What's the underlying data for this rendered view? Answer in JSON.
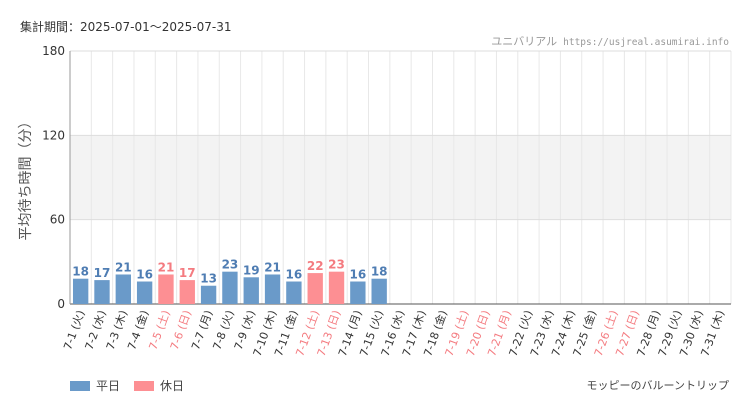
{
  "period_label": "集計期間：2025-07-01～2025-07-31",
  "source": {
    "park": "ユニバリアル",
    "site": "https://usjreal.asumirai.info"
  },
  "attraction": "モッピーのバルーントリップ",
  "colors": {
    "weekday": "#6a9ac9",
    "holiday": "#fd8f93",
    "holiday_label": "#f47b80",
    "weekday_label": "#4f7db3"
  },
  "legend": [
    {
      "label": "平日",
      "color": "#6a9ac9"
    },
    {
      "label": "休日",
      "color": "#fd8f93"
    }
  ],
  "chart_data": {
    "type": "bar",
    "ylabel": "平均待ち時間（分）",
    "ylim": [
      0,
      180
    ],
    "yticks": [
      0,
      60,
      120,
      180
    ],
    "categories": [
      "7-1 (火)",
      "7-2 (水)",
      "7-3 (木)",
      "7-4 (金)",
      "7-5 (土)",
      "7-6 (日)",
      "7-7 (月)",
      "7-8 (火)",
      "7-9 (水)",
      "7-10 (木)",
      "7-11 (金)",
      "7-12 (土)",
      "7-13 (日)",
      "7-14 (月)",
      "7-15 (火)",
      "7-16 (水)",
      "7-17 (木)",
      "7-18 (金)",
      "7-19 (土)",
      "7-20 (日)",
      "7-21 (月)",
      "7-22 (火)",
      "7-23 (水)",
      "7-24 (木)",
      "7-25 (金)",
      "7-26 (土)",
      "7-27 (日)",
      "7-28 (月)",
      "7-29 (火)",
      "7-30 (水)",
      "7-31 (木)"
    ],
    "values": [
      18,
      17,
      21,
      16,
      21,
      17,
      13,
      23,
      19,
      21,
      16,
      22,
      23,
      16,
      18,
      null,
      null,
      null,
      null,
      null,
      null,
      null,
      null,
      null,
      null,
      null,
      null,
      null,
      null,
      null,
      null
    ],
    "day_type": [
      "平日",
      "平日",
      "平日",
      "平日",
      "休日",
      "休日",
      "平日",
      "平日",
      "平日",
      "平日",
      "平日",
      "休日",
      "休日",
      "平日",
      "平日",
      "平日",
      "平日",
      "平日",
      "休日",
      "休日",
      "休日",
      "平日",
      "平日",
      "平日",
      "平日",
      "休日",
      "休日",
      "平日",
      "平日",
      "平日",
      "平日"
    ],
    "shaded_band": [
      60,
      120
    ],
    "grid": true,
    "legend_position": "bottom-left"
  }
}
